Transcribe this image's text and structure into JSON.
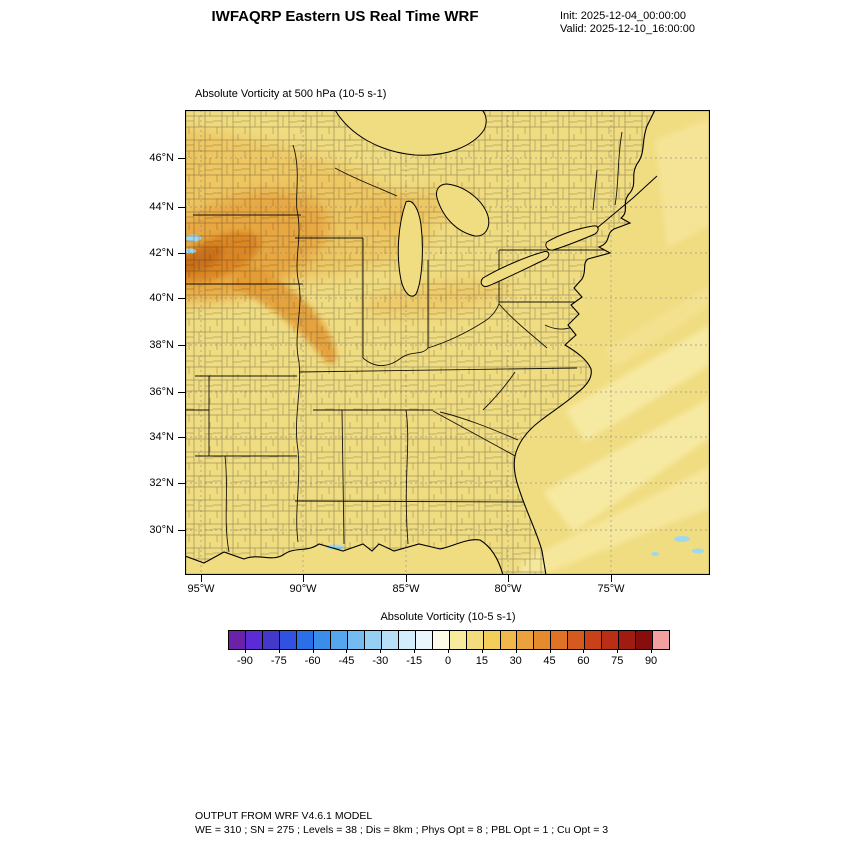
{
  "header": {
    "title": "IWFAQRP Eastern US Real Time WRF",
    "init_label": "Init: 2025-12-04_00:00:00",
    "valid_label": "Valid: 2025-12-10_16:00:00"
  },
  "plot": {
    "title": "Absolute Vorticity at 500 hPa  (10-5 s-1)",
    "lat_labels": [
      "46°N",
      "44°N",
      "42°N",
      "40°N",
      "38°N",
      "36°N",
      "34°N",
      "32°N",
      "30°N"
    ],
    "lon_labels": [
      "95°W",
      "90°W",
      "85°W",
      "80°W",
      "75°W"
    ]
  },
  "colorbar": {
    "title": "Absolute Vorticity  (10-5 s-1)",
    "tick_labels": [
      "-90",
      "-75",
      "-60",
      "-45",
      "-30",
      "-15",
      "0",
      "15",
      "30",
      "45",
      "60",
      "75",
      "90"
    ],
    "colors": [
      "#6B21A8",
      "#5B2BD6",
      "#4338CA",
      "#3151E0",
      "#2B6FE8",
      "#3A8DEB",
      "#55A6ED",
      "#74BCEF",
      "#95CFF2",
      "#B7E0F6",
      "#D4EDFA",
      "#EAF6FC",
      "#FDFBE8",
      "#F7EC9E",
      "#F2DC7D",
      "#F3CE5B",
      "#F0B94A",
      "#ECA23C",
      "#E68A2E",
      "#DF7226",
      "#D65A20",
      "#C94118",
      "#B92E14",
      "#A11C10",
      "#870E0C",
      "#F2A0A0"
    ]
  },
  "footer": {
    "line1": "OUTPUT FROM WRF V4.6.1 MODEL",
    "line2": "WE = 310 ; SN = 275 ; Levels = 38 ; Dis = 8km ; Phys Opt = 8 ; PBL Opt = 1 ; Cu Opt = 3"
  },
  "chart_data": {
    "type": "heatmap",
    "title": "Absolute Vorticity at 500 hPa (10-5 s-1)",
    "variable": "Absolute Vorticity",
    "units": "10-5 s-1",
    "level": "500 hPa",
    "x_ticks": [
      "95°W",
      "90°W",
      "85°W",
      "80°W",
      "75°W"
    ],
    "y_ticks": [
      "46°N",
      "44°N",
      "42°N",
      "40°N",
      "38°N",
      "36°N",
      "34°N",
      "32°N",
      "30°N"
    ],
    "colorbar_ticks": [
      -90,
      -75,
      -60,
      -45,
      -30,
      -15,
      0,
      15,
      30,
      45,
      60,
      75,
      90
    ],
    "colorbar_range": [
      -97.5,
      97.5
    ],
    "base_color": "#F0DC81",
    "field_summary": [
      {
        "region": "most of the Eastern US domain and western Atlantic",
        "value_range": [
          0,
          15
        ]
      },
      {
        "region": "curved band from Minnesota/Iowa across Wisconsin into Illinois, Indiana and Ohio valley",
        "value_range": [
          15,
          45
        ]
      },
      {
        "region": "vorticity maximum near the western map edge around 41-43N",
        "value_range": [
          45,
          60
        ]
      },
      {
        "region": "small negative patches: west edge near 42N, Gulf coast, far southeast ocean",
        "value_range": [
          -15,
          0
        ]
      },
      {
        "region": "pale diagonal streaks over the southeast Atlantic",
        "value_range": [
          0,
          8
        ]
      }
    ]
  }
}
